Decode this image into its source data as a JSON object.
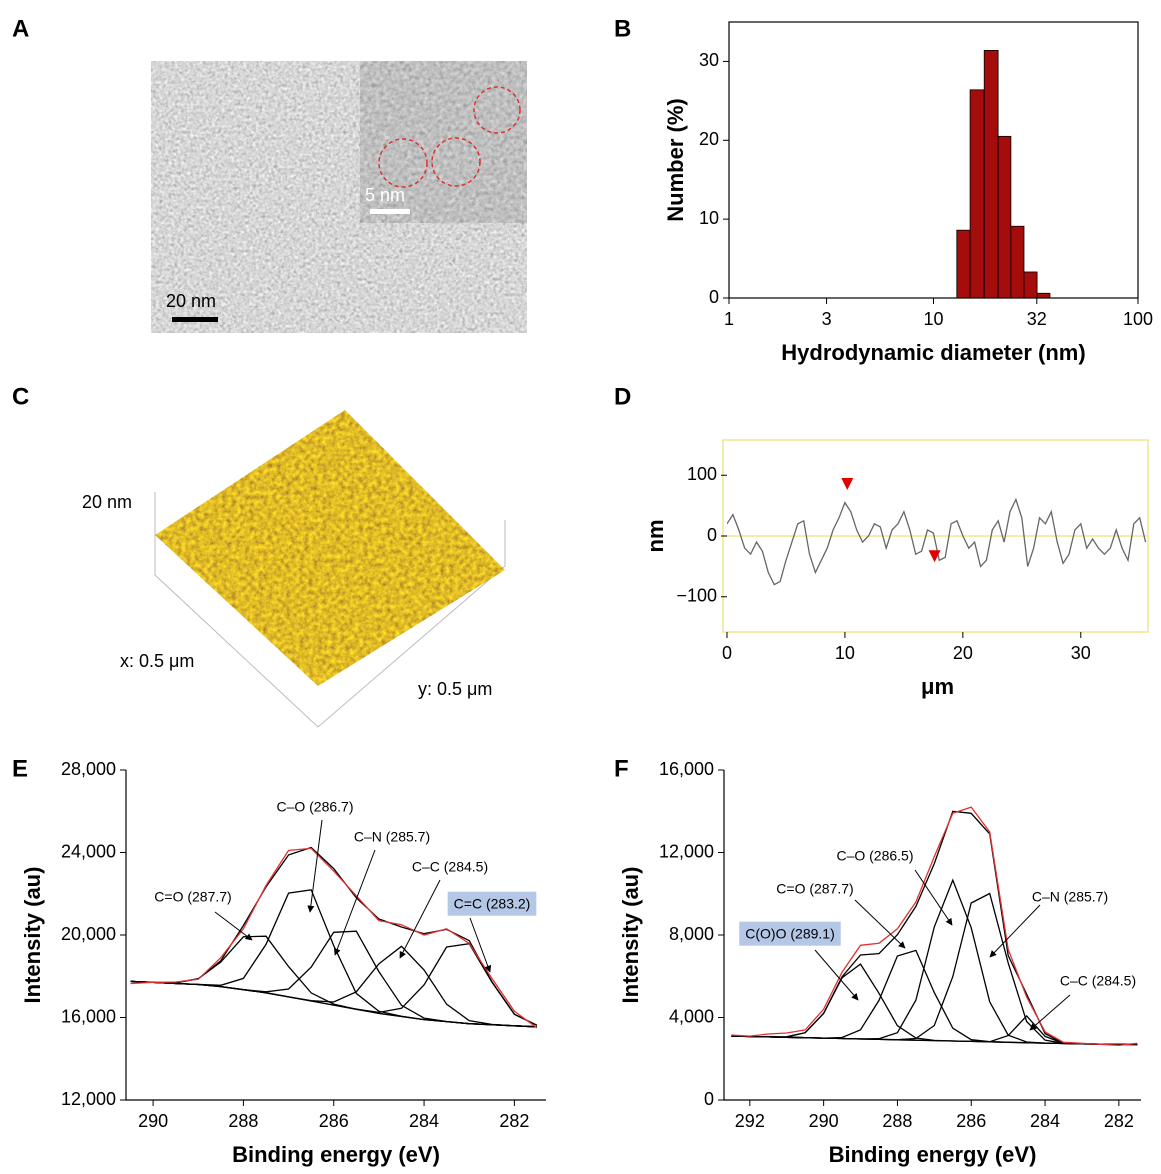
{
  "chart_data": [
    {
      "type": "image",
      "label": "A",
      "annotations": [
        "20 nm",
        "5 nm"
      ]
    },
    {
      "type": "histogram",
      "label": "B",
      "xlabel": "Hydrodynamic diameter (nm)",
      "ylabel": "Number (%)",
      "bins": [
        13.0,
        15.1,
        17.7,
        20.7,
        23.9,
        27.7,
        32.1,
        37.1
      ],
      "values": [
        8.6,
        26.4,
        31.4,
        20.5,
        9.1,
        3.3,
        0.6
      ],
      "color": "#a50d0d",
      "xscale": "log",
      "xlim": [
        1,
        100
      ],
      "xticks": [
        1,
        3,
        10,
        32,
        100
      ],
      "ylim": [
        0,
        35
      ],
      "yticks": [
        0,
        10,
        20,
        30
      ],
      "box": true
    },
    {
      "type": "image",
      "label": "C",
      "annotations": [
        "20 nm",
        "x: 0.5 μm",
        "y: 0.5 μm"
      ]
    },
    {
      "type": "line",
      "label": "D",
      "xlabel": "μm",
      "ylabel": "nm",
      "xlim": [
        0,
        35.7
      ],
      "ylim": [
        -158,
        158
      ],
      "xticks": [
        0,
        10,
        20,
        30
      ],
      "yticks": [
        {
          "value": -100,
          "label": "−100"
        },
        0,
        100
      ],
      "frame_color": "#f0e68c",
      "x": [
        0,
        0.5,
        1,
        1.5,
        2,
        2.5,
        3,
        3.5,
        4,
        4.5,
        5,
        5.5,
        6,
        6.5,
        7,
        7.5,
        8,
        8.5,
        9,
        9.5,
        10,
        10.5,
        11,
        11.5,
        12,
        12.5,
        13,
        13.5,
        14,
        14.5,
        15,
        15.5,
        16,
        16.5,
        17,
        17.5,
        18,
        18.5,
        19,
        19.5,
        20,
        20.5,
        21,
        21.5,
        22,
        22.5,
        23,
        23.5,
        24,
        24.5,
        25,
        25.5,
        26,
        26.5,
        27,
        27.5,
        28,
        28.5,
        29,
        29.5,
        30,
        30.5,
        31,
        31.5,
        32,
        32.5,
        33,
        33.5,
        34,
        34.5,
        35,
        35.5
      ],
      "series": [
        {
          "color": "#666666",
          "values": [
            20,
            35,
            10,
            -20,
            -30,
            -10,
            -25,
            -60,
            -80,
            -75,
            -40,
            -10,
            20,
            25,
            -30,
            -60,
            -40,
            -20,
            10,
            30,
            55,
            40,
            10,
            -10,
            0,
            20,
            15,
            -20,
            10,
            20,
            40,
            10,
            -30,
            -25,
            10,
            5,
            -40,
            -35,
            20,
            25,
            0,
            -20,
            -10,
            -50,
            -40,
            10,
            25,
            -10,
            40,
            60,
            30,
            -50,
            -20,
            30,
            20,
            40,
            -10,
            -45,
            -30,
            10,
            20,
            -20,
            -5,
            -20,
            -30,
            -20,
            10,
            -20,
            -40,
            20,
            30,
            -10
          ]
        }
      ],
      "markers": {
        "x": [
          10.2,
          17.6
        ],
        "y": [
          79,
          -40
        ],
        "color": "#e00000"
      }
    },
    {
      "type": "line",
      "label": "E",
      "xlabel": "Binding energy (eV)",
      "ylabel": "Intensity (au)",
      "xlim": [
        290.6,
        281.3
      ],
      "ylim": [
        12000,
        28000
      ],
      "xticks": [
        290,
        288,
        286,
        284,
        282
      ],
      "yticks": [
        {
          "value": 12000,
          "label": "12,000"
        },
        {
          "value": 16000,
          "label": "16,000"
        },
        {
          "value": 20000,
          "label": "20,000"
        },
        {
          "value": 24000,
          "label": "24,000"
        },
        {
          "value": 28000,
          "label": "28,000"
        }
      ],
      "x": [
        290.5,
        290,
        289.5,
        289,
        288.5,
        288,
        287.5,
        287,
        286.5,
        286,
        285.5,
        285,
        284.5,
        284,
        283.5,
        283,
        282.5,
        282,
        281.5
      ],
      "series": [
        {
          "color": "#555555",
          "values": [
            17750,
            17700,
            17650,
            17600,
            17500,
            17350,
            17200,
            17000,
            16800,
            16600,
            16400,
            16200,
            16050,
            15900,
            15800,
            15700,
            15650,
            15600,
            15550
          ]
        },
        {
          "name": "C=O (287.7)",
          "color": "#000000",
          "values": [
            17750,
            17702,
            17682,
            17878,
            18692,
            19911,
            19943,
            18467,
            17192,
            16652,
            16403,
            16200,
            16050,
            15900,
            15800,
            15700,
            15650,
            15600,
            15550
          ]
        },
        {
          "name": "C–O (286.7)",
          "color": "#000000",
          "values": [
            17750,
            17700,
            17650,
            17603,
            17563,
            17897,
            19543,
            22033,
            22192,
            19484,
            17170,
            16303,
            16056,
            15900,
            15800,
            15700,
            15650,
            15600,
            15550
          ]
        },
        {
          "name": "C–N (285.7)",
          "color": "#000000",
          "values": [
            17750,
            17700,
            17650,
            17600,
            17500,
            17352,
            17244,
            17384,
            18444,
            20132,
            20184,
            18224,
            16590,
            15972,
            15804,
            15700,
            15650,
            15600,
            15550
          ]
        },
        {
          "name": "C–C (284.5)",
          "color": "#000000",
          "values": [
            17750,
            17700,
            17650,
            17600,
            17500,
            17350,
            17200,
            17000,
            16814,
            16750,
            17247,
            18604,
            19450,
            18304,
            16647,
            15850,
            15664,
            15600,
            15550
          ]
        },
        {
          "name": "C=C (283.2)",
          "color": "#000000",
          "label_background": "#b4c7e7",
          "values": [
            17750,
            17700,
            17650,
            17600,
            17500,
            17350,
            17200,
            17000,
            16800,
            16600,
            16402,
            16245,
            16444,
            17585,
            19420,
            19579,
            17725,
            16154,
            15624
          ]
        },
        {
          "color": "#000000",
          "values": [
            17750,
            17702,
            17682,
            17881,
            18755,
            20460,
            22330,
            23884,
            24242,
            23218,
            21806,
            20776,
            20390,
            20061,
            20271,
            19729,
            17739,
            16154,
            15624
          ]
        },
        {
          "color": "#e03030",
          "values": [
            17650,
            17700,
            17720,
            17850,
            18900,
            20300,
            22400,
            24100,
            24200,
            23100,
            21900,
            20700,
            20500,
            20000,
            20300,
            19600,
            17900,
            16300,
            15500
          ]
        }
      ]
    },
    {
      "type": "line",
      "label": "F",
      "xlabel": "Binding energy (eV)",
      "ylabel": "Intensity (au)",
      "xlim": [
        292.7,
        281.4
      ],
      "ylim": [
        0,
        16000
      ],
      "xticks": [
        292,
        290,
        288,
        286,
        284,
        282
      ],
      "yticks": [
        0,
        {
          "value": 4000,
          "label": "4,000"
        },
        {
          "value": 8000,
          "label": "8,000"
        },
        {
          "value": 12000,
          "label": "12,000"
        },
        {
          "value": 16000,
          "label": "16,000"
        }
      ],
      "x": [
        292.5,
        292,
        291.5,
        291,
        290.5,
        290,
        289.5,
        289,
        288.5,
        288,
        287.5,
        287,
        286.5,
        286,
        285.5,
        285,
        284.5,
        284,
        283.5,
        283,
        282.5,
        282,
        281.5
      ],
      "series": [
        {
          "color": "#555555",
          "values": [
            3100,
            3080,
            3060,
            3040,
            3020,
            3000,
            2980,
            2960,
            2940,
            2920,
            2900,
            2880,
            2860,
            2840,
            2820,
            2800,
            2780,
            2760,
            2740,
            2720,
            2710,
            2700,
            2690
          ]
        },
        {
          "name": "C(O)O (289.1)",
          "color": "#000000",
          "label_background": "#b4c7e7",
          "values": [
            3100,
            3080,
            3061,
            3064,
            3263,
            4196,
            5928,
            6588,
            5174,
            3604,
            3007,
            2888,
            2860,
            2840,
            2820,
            2800,
            2780,
            2760,
            2740,
            2720,
            2710,
            2700,
            2690
          ]
        },
        {
          "name": "C=O (287.7)",
          "color": "#000000",
          "values": [
            3100,
            3080,
            3060,
            3040,
            3020,
            3003,
            3031,
            3402,
            4831,
            6982,
            7252,
            5208,
            3481,
            2923,
            2825,
            2800,
            2780,
            2760,
            2740,
            2720,
            2710,
            2700,
            2690
          ]
        },
        {
          "name": "C–O (286.5)",
          "color": "#000000",
          "values": [
            3100,
            3080,
            3060,
            3040,
            3020,
            3000,
            2980,
            2961,
            2971,
            3263,
            4842,
            8395,
            10660,
            8355,
            4762,
            3143,
            2811,
            2760,
            2740,
            2720,
            2710,
            2700,
            2690
          ]
        },
        {
          "name": "C–N (285.7)",
          "color": "#000000",
          "values": [
            3100,
            3080,
            3060,
            3040,
            3020,
            3000,
            2980,
            2960,
            2940,
            2925,
            2984,
            3610,
            5984,
            9551,
            10010,
            6646,
            3806,
            2897,
            2748,
            2720,
            2710,
            2700,
            2690
          ]
        },
        {
          "name": "C–C (284.5)",
          "color": "#000000",
          "values": [
            3100,
            3080,
            3060,
            3040,
            3020,
            3000,
            2980,
            2960,
            2940,
            2920,
            2900,
            2880,
            2860,
            2840,
            2825,
            3124,
            4080,
            3084,
            2745,
            2720,
            2710,
            2700,
            2690
          ]
        },
        {
          "color": "#000000",
          "values": [
            3100,
            3080,
            3061,
            3064,
            3263,
            4199,
            5979,
            7031,
            7096,
            8014,
            9385,
            11461,
            14000,
            13900,
            12900,
            7000,
            5137,
            3221,
            2753,
            2720,
            2710,
            2700,
            2690
          ]
        },
        {
          "color": "#e03030",
          "values": [
            3150,
            3100,
            3200,
            3250,
            3400,
            4400,
            6200,
            7500,
            7600,
            8300,
            9600,
            11800,
            13900,
            14200,
            13000,
            7300,
            5000,
            3300,
            2800,
            2750,
            2700,
            2650,
            2750
          ]
        }
      ]
    }
  ]
}
